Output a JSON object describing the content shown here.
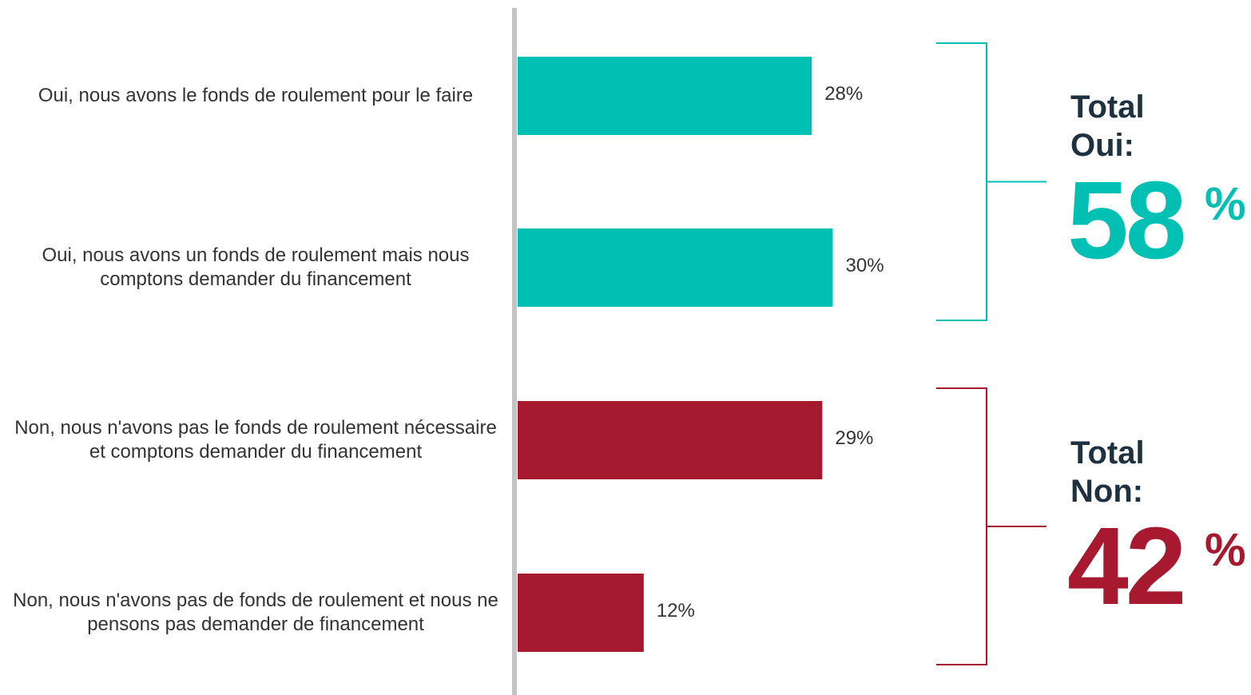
{
  "chart_data": {
    "type": "bar",
    "orientation": "horizontal",
    "categories": [
      "Oui, nous avons le fonds de roulement pour le faire",
      "Oui, nous avons un fonds de roulement mais nous comptons demander du financement",
      "Non, nous n'avons pas le fonds de roulement nécessaire et comptons demander du financement",
      "Non, nous n'avons pas de fonds de roulement et nous ne pensons pas demander de financement"
    ],
    "values": [
      28,
      30,
      29,
      12
    ],
    "value_labels": [
      "28%",
      "30%",
      "29%",
      "12%"
    ],
    "colors": [
      "#00bfb3",
      "#00bfb3",
      "#a6192e",
      "#a6192e"
    ],
    "groups": [
      {
        "label": "Total Oui:",
        "value": 58,
        "unit": "%",
        "color": "#00bfb3"
      },
      {
        "label": "Total Non:",
        "value": 42,
        "unit": "%",
        "color": "#a6192e"
      }
    ]
  }
}
